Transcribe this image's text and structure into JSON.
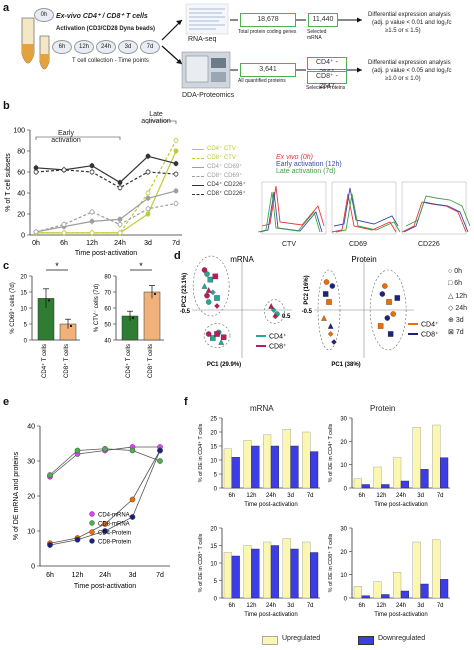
{
  "panels": {
    "a": "a",
    "b": "b",
    "c": "c",
    "d": "d",
    "e": "e",
    "f": "f"
  },
  "a": {
    "exvivo": "0h",
    "title1": "Ex-vivo CD4⁺ / CD8⁺ T cells",
    "title2": "Activation (CD3/CD28 Dyna beads)",
    "timepoints": [
      "6h",
      "12h",
      "24h",
      "3d",
      "7d"
    ],
    "collection": "T cell collection - Time points",
    "rnaseq": "RNA-seq",
    "proteomics": "DDA-Proteomics",
    "rna_total_num": "18,678",
    "rna_total_label": "Total protein coding genes",
    "rna_sel_num": "11,440",
    "rna_sel_label": "Selected mRNA",
    "prot_total_num": "3,641",
    "prot_total_label": "All quantified proteins",
    "prot_cd4": "CD4⁺ - 2561",
    "prot_cd8": "CD8⁺ - 2547",
    "prot_sel_label": "Selected Proteins",
    "de1_l1": "Differential expression analysis",
    "de1_l2": "(adj. p value < 0.01 and log₂fc",
    "de1_l3": "≥1.5 or ≤ 1.5)",
    "de2_l1": "Differential expression analysis",
    "de2_l2": "(adj. p value < 0.05 and log₂fc",
    "de2_l3": "≥1.0 or ≤ 1.0)"
  },
  "b": {
    "early": "Early activation",
    "late": "Late activation",
    "ylabel": "% of T cell subsets",
    "xlabel": "Time post-activation",
    "legend": [
      "CD4⁺ CTV⁻",
      "CD8⁺ CTV⁻",
      "CD4⁺ CD69⁺",
      "CD8⁺ CD69⁺",
      "CD4⁺ CD226⁺",
      "CD8⁺ CD226⁺"
    ],
    "hist_legend": [
      "Ex vivo (0h)",
      "Early activation (12h)",
      "Late activation (7d)"
    ],
    "hist_colors": [
      "#e53935",
      "#3949ab",
      "#43a047"
    ],
    "hist_labels": [
      "CTV",
      "CD69",
      "CD226"
    ]
  },
  "c": {
    "star": "*",
    "ylabel1": "% CD69⁺ cells (7d)",
    "ylabel2": "% CTV⁻ cells (7d)",
    "xlabels": [
      "CD4⁺ T cells",
      "CD8⁺ T cells"
    ]
  },
  "d": {
    "title_mrna": "mRNA",
    "title_protein": "Protein",
    "pc2_mrna": "PC2 (23.1%)",
    "pc1_mrna": "PC1 (29.9%)",
    "pc2_prot": "PC2 (16%)",
    "pc1_prot": "PC1 (38%)",
    "neg": "-0.5",
    "pos": "0.5",
    "legend_mrna": [
      "CD4⁺",
      "CD8⁺"
    ],
    "legend_prot": [
      "CD4⁺",
      "CD8⁺"
    ],
    "shape_legend": [
      "0h",
      "6h",
      "12h",
      "24h",
      "3d",
      "7d"
    ]
  },
  "e": {
    "ylabel": "% of DE mRNA and proteins",
    "xlabel": "Time post-activation",
    "legend": [
      "CD4-mRNA",
      "CD8-mRNA",
      "CD4-Protein",
      "CD8-Protein"
    ]
  },
  "f": {
    "title_mrna": "mRNA",
    "title_protein": "Protein",
    "ylabel_cd4": "% of DE in CD4⁺ T cells",
    "ylabel_cd8": "% of DE in CD8⁺ T cells",
    "xlabel": "Time post-activation",
    "legend": [
      "Upregulated",
      "Downregulated"
    ]
  },
  "chart_data": [
    {
      "id": "b-lines",
      "type": "line",
      "title": "",
      "xlabel": "Time post-activation",
      "ylabel": "% of T cell subsets",
      "categories": [
        "0h",
        "6h",
        "12h",
        "24h",
        "3d",
        "7d"
      ],
      "ylim": [
        0,
        100
      ],
      "yticks": [
        0,
        20,
        40,
        60,
        80,
        100
      ],
      "series": [
        {
          "name": "CD4⁺ CTV⁻",
          "color": "#c0ca33",
          "dash": false,
          "values": [
            2,
            2,
            2,
            2,
            20,
            80
          ]
        },
        {
          "name": "CD8⁺ CTV⁻",
          "color": "#c0ca33",
          "dash": true,
          "values": [
            2,
            2,
            2,
            2,
            40,
            90
          ]
        },
        {
          "name": "CD4⁺ CD69⁺",
          "color": "#9e9e9e",
          "dash": false,
          "values": [
            3,
            8,
            13,
            15,
            35,
            42
          ]
        },
        {
          "name": "CD8⁺ CD69⁺",
          "color": "#9e9e9e",
          "dash": true,
          "values": [
            3,
            10,
            22,
            10,
            25,
            30
          ]
        },
        {
          "name": "CD4⁺ CD226⁺",
          "color": "#333333",
          "dash": false,
          "values": [
            64,
            62,
            66,
            50,
            75,
            68
          ]
        },
        {
          "name": "CD8⁺ CD226⁺",
          "color": "#333333",
          "dash": true,
          "values": [
            60,
            62,
            60,
            45,
            60,
            58
          ]
        }
      ]
    },
    {
      "id": "c-cd69",
      "type": "bar",
      "categories": [
        "CD4⁺ T cells",
        "CD8⁺ T cells"
      ],
      "values": [
        13,
        5
      ],
      "errors": [
        3,
        1.5
      ],
      "ylim": [
        0,
        20
      ],
      "yticks": [
        0,
        5,
        10,
        15,
        20
      ],
      "colors": [
        "#2e7d32",
        "#f0b27a"
      ],
      "ylabel": "% CD69⁺ cells (7d)"
    },
    {
      "id": "c-ctv",
      "type": "bar",
      "categories": [
        "CD4⁺ T cells",
        "CD8⁺ T cells"
      ],
      "values": [
        55,
        70
      ],
      "errors": [
        3,
        4
      ],
      "ylim": [
        40,
        80
      ],
      "yticks": [
        40,
        50,
        60,
        70,
        80
      ],
      "colors": [
        "#2e7d32",
        "#f0b27a"
      ],
      "ylabel": "% CTV⁻ cells (7d)"
    },
    {
      "id": "d-mrna",
      "type": "scatter",
      "title": "mRNA",
      "xlabel": "PC1 (29.9%)",
      "ylabel": "PC2 (23.1%)",
      "xlim": [
        -0.6,
        0.6
      ],
      "ylim": [
        -0.6,
        0.6
      ],
      "series": [
        {
          "name": "CD4⁺",
          "color": "#26a69a",
          "points": [
            [
              -0.42,
              0.45
            ],
            [
              -0.38,
              0.38
            ],
            [
              -0.45,
              0.3
            ],
            [
              -0.35,
              0.22
            ],
            [
              -0.4,
              0.1
            ],
            [
              -0.3,
              0.15
            ],
            [
              -0.28,
              -0.28
            ],
            [
              -0.35,
              -0.35
            ],
            [
              -0.25,
              -0.4
            ],
            [
              0.38,
              0.0
            ],
            [
              0.42,
              -0.05
            ]
          ]
        },
        {
          "name": "CD8⁺",
          "color": "#c2185b",
          "points": [
            [
              -0.45,
              0.5
            ],
            [
              -0.32,
              0.42
            ],
            [
              -0.4,
              0.25
            ],
            [
              -0.3,
              0.05
            ],
            [
              -0.42,
              0.18
            ],
            [
              -0.3,
              -0.3
            ],
            [
              -0.4,
              -0.3
            ],
            [
              -0.22,
              -0.34
            ],
            [
              0.35,
              0.05
            ],
            [
              0.4,
              -0.08
            ]
          ]
        }
      ]
    },
    {
      "id": "d-protein",
      "type": "scatter",
      "title": "Protein",
      "xlabel": "PC1 (38%)",
      "ylabel": "PC2 (16%)",
      "xlim": [
        -0.6,
        0.6
      ],
      "ylim": [
        -0.6,
        0.6
      ],
      "series": [
        {
          "name": "CD4⁺",
          "color": "#ef6c00",
          "points": [
            [
              -0.45,
              0.35
            ],
            [
              -0.42,
              0.1
            ],
            [
              -0.48,
              -0.1
            ],
            [
              -0.4,
              -0.3
            ],
            [
              0.25,
              0.3
            ],
            [
              0.3,
              0.1
            ],
            [
              0.35,
              -0.05
            ],
            [
              0.2,
              -0.2
            ]
          ]
        },
        {
          "name": "CD8⁺",
          "color": "#1a237e",
          "points": [
            [
              -0.38,
              0.3
            ],
            [
              -0.46,
              0.2
            ],
            [
              -0.4,
              -0.2
            ],
            [
              -0.36,
              -0.4
            ],
            [
              0.22,
              0.2
            ],
            [
              0.4,
              0.15
            ],
            [
              0.28,
              -0.1
            ],
            [
              0.32,
              -0.3
            ]
          ]
        }
      ]
    },
    {
      "id": "e-lines",
      "type": "line",
      "xlabel": "Time post-activation",
      "ylabel": "% of DE mRNA and proteins",
      "categories": [
        "6h",
        "12h",
        "24h",
        "3d",
        "7d"
      ],
      "ylim": [
        0,
        40
      ],
      "yticks": [
        0,
        10,
        20,
        30,
        40
      ],
      "series": [
        {
          "name": "CD4-mRNA",
          "color": "#e040fb",
          "values": [
            25.5,
            32,
            33,
            34,
            34
          ]
        },
        {
          "name": "CD8-mRNA",
          "color": "#4caf50",
          "values": [
            26,
            33,
            33.5,
            33,
            30
          ]
        },
        {
          "name": "CD4-Protein",
          "color": "#ef6c00",
          "values": [
            6.5,
            8,
            12,
            19,
            33
          ]
        },
        {
          "name": "CD8-Protein",
          "color": "#1a237e",
          "values": [
            6,
            7.5,
            10,
            14,
            33
          ]
        }
      ]
    },
    {
      "id": "f-mrna-cd4",
      "type": "bar",
      "categories": [
        "6h",
        "12h",
        "24h",
        "3d",
        "7d"
      ],
      "ylim": [
        0,
        25
      ],
      "yticks": [
        0,
        5,
        10,
        15,
        20,
        25
      ],
      "series": [
        {
          "name": "Upregulated",
          "values": [
            14,
            17,
            19,
            21,
            20
          ]
        },
        {
          "name": "Downregulated",
          "values": [
            11,
            15,
            15,
            15,
            13
          ]
        }
      ]
    },
    {
      "id": "f-protein-cd4",
      "type": "bar",
      "categories": [
        "6h",
        "12h",
        "24h",
        "3d",
        "7d"
      ],
      "ylim": [
        0,
        30
      ],
      "yticks": [
        0,
        10,
        20,
        30
      ],
      "series": [
        {
          "name": "Upregulated",
          "values": [
            4,
            9,
            13,
            26,
            27
          ]
        },
        {
          "name": "Downregulated",
          "values": [
            1.5,
            1.5,
            3,
            8,
            13
          ]
        }
      ]
    },
    {
      "id": "f-mrna-cd8",
      "type": "bar",
      "categories": [
        "6h",
        "12h",
        "24h",
        "3d",
        "7d"
      ],
      "ylim": [
        0,
        20
      ],
      "yticks": [
        0,
        5,
        10,
        15,
        20
      ],
      "series": [
        {
          "name": "Upregulated",
          "values": [
            13,
            15,
            16,
            17,
            16
          ]
        },
        {
          "name": "Downregulated",
          "values": [
            12,
            14,
            15,
            14,
            13
          ]
        }
      ]
    },
    {
      "id": "f-protein-cd8",
      "type": "bar",
      "categories": [
        "6h",
        "12h",
        "24h",
        "3d",
        "7d"
      ],
      "ylim": [
        0,
        30
      ],
      "yticks": [
        0,
        10,
        20,
        30
      ],
      "series": [
        {
          "name": "Upregulated",
          "values": [
            5,
            7,
            11,
            24,
            25
          ]
        },
        {
          "name": "Downregulated",
          "values": [
            1,
            1.5,
            3,
            6,
            8
          ]
        }
      ]
    }
  ]
}
